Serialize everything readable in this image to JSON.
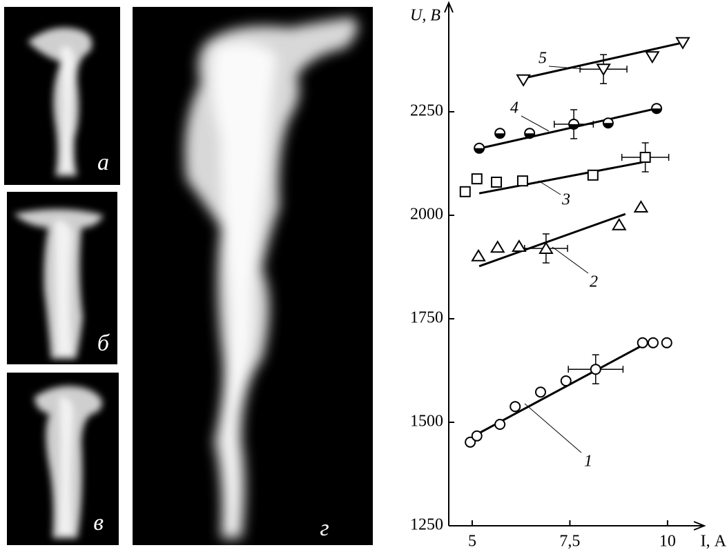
{
  "panels": {
    "labels": [
      "а",
      "б",
      "в",
      "г"
    ]
  },
  "chart_data": {
    "type": "scatter",
    "xlabel": "I, А",
    "ylabel": "U, В",
    "xlim": [
      4.4,
      10.85
    ],
    "ylim": [
      1250,
      2500
    ],
    "xticks": [
      5,
      {
        "value": 7.5,
        "label": "7,5"
      },
      10
    ],
    "yticks": [
      1250,
      1500,
      1750,
      2000,
      2250
    ],
    "series": [
      {
        "name": "1",
        "marker": "circle",
        "color": "#000000",
        "x": [
          4.95,
          5.12,
          5.71,
          6.1,
          6.75,
          7.4,
          8.16,
          9.36,
          9.63,
          9.98
        ],
        "values": [
          1452,
          1467,
          1495,
          1538,
          1573,
          1600,
          1628,
          1692,
          1692,
          1692
        ],
        "yerr": [
          null,
          null,
          null,
          null,
          null,
          null,
          35,
          null,
          null,
          null
        ],
        "xerr": [
          null,
          null,
          null,
          null,
          null,
          null,
          0.7,
          null,
          null,
          null
        ],
        "fit": {
          "x": [
            5.2,
            9.4
          ],
          "y": [
            1475,
            1688
          ]
        }
      },
      {
        "name": "2",
        "marker": "triangle-up",
        "color": "#000000",
        "x": [
          5.16,
          5.65,
          6.2,
          6.89,
          8.76,
          9.32
        ],
        "values": [
          1902,
          1923,
          1925,
          1920,
          1977,
          2020
        ],
        "yerr": [
          null,
          null,
          null,
          35,
          null,
          null
        ],
        "xerr": [
          null,
          null,
          null,
          0.55,
          null,
          null
        ],
        "fit": {
          "x": [
            5.18,
            8.92
          ],
          "y": [
            1877,
            2003
          ]
        }
      },
      {
        "name": "3",
        "marker": "square",
        "color": "#000000",
        "x": [
          4.82,
          5.12,
          5.62,
          6.29,
          8.09,
          9.43
        ],
        "values": [
          2057,
          2088,
          2080,
          2083,
          2097,
          2140
        ],
        "yerr": [
          null,
          null,
          null,
          null,
          null,
          35
        ],
        "xerr": [
          null,
          null,
          null,
          null,
          null,
          0.6
        ],
        "fit": {
          "x": [
            5.18,
            9.36
          ],
          "y": [
            2053,
            2128
          ]
        }
      },
      {
        "name": "4",
        "marker": "half-circle",
        "color": "#000000",
        "x": [
          5.18,
          5.71,
          6.47,
          7.6,
          8.48,
          9.72
        ],
        "values": [
          2162,
          2198,
          2198,
          2220,
          2223,
          2258
        ],
        "yerr": [
          null,
          null,
          null,
          35,
          null,
          null
        ],
        "xerr": [
          null,
          null,
          null,
          0.5,
          null,
          null
        ],
        "fit": {
          "x": [
            5.12,
            9.72
          ],
          "y": [
            2160,
            2258
          ]
        }
      },
      {
        "name": "5",
        "marker": "triangle-down",
        "color": "#000000",
        "x": [
          6.31,
          8.36,
          9.61,
          10.39
        ],
        "values": [
          2327,
          2353,
          2383,
          2417
        ],
        "yerr": [
          null,
          35,
          null,
          null
        ],
        "xerr": [
          null,
          0.6,
          null,
          null
        ],
        "fit": {
          "x": [
            6.36,
            10.39
          ],
          "y": [
            2332,
            2417
          ]
        }
      }
    ]
  }
}
